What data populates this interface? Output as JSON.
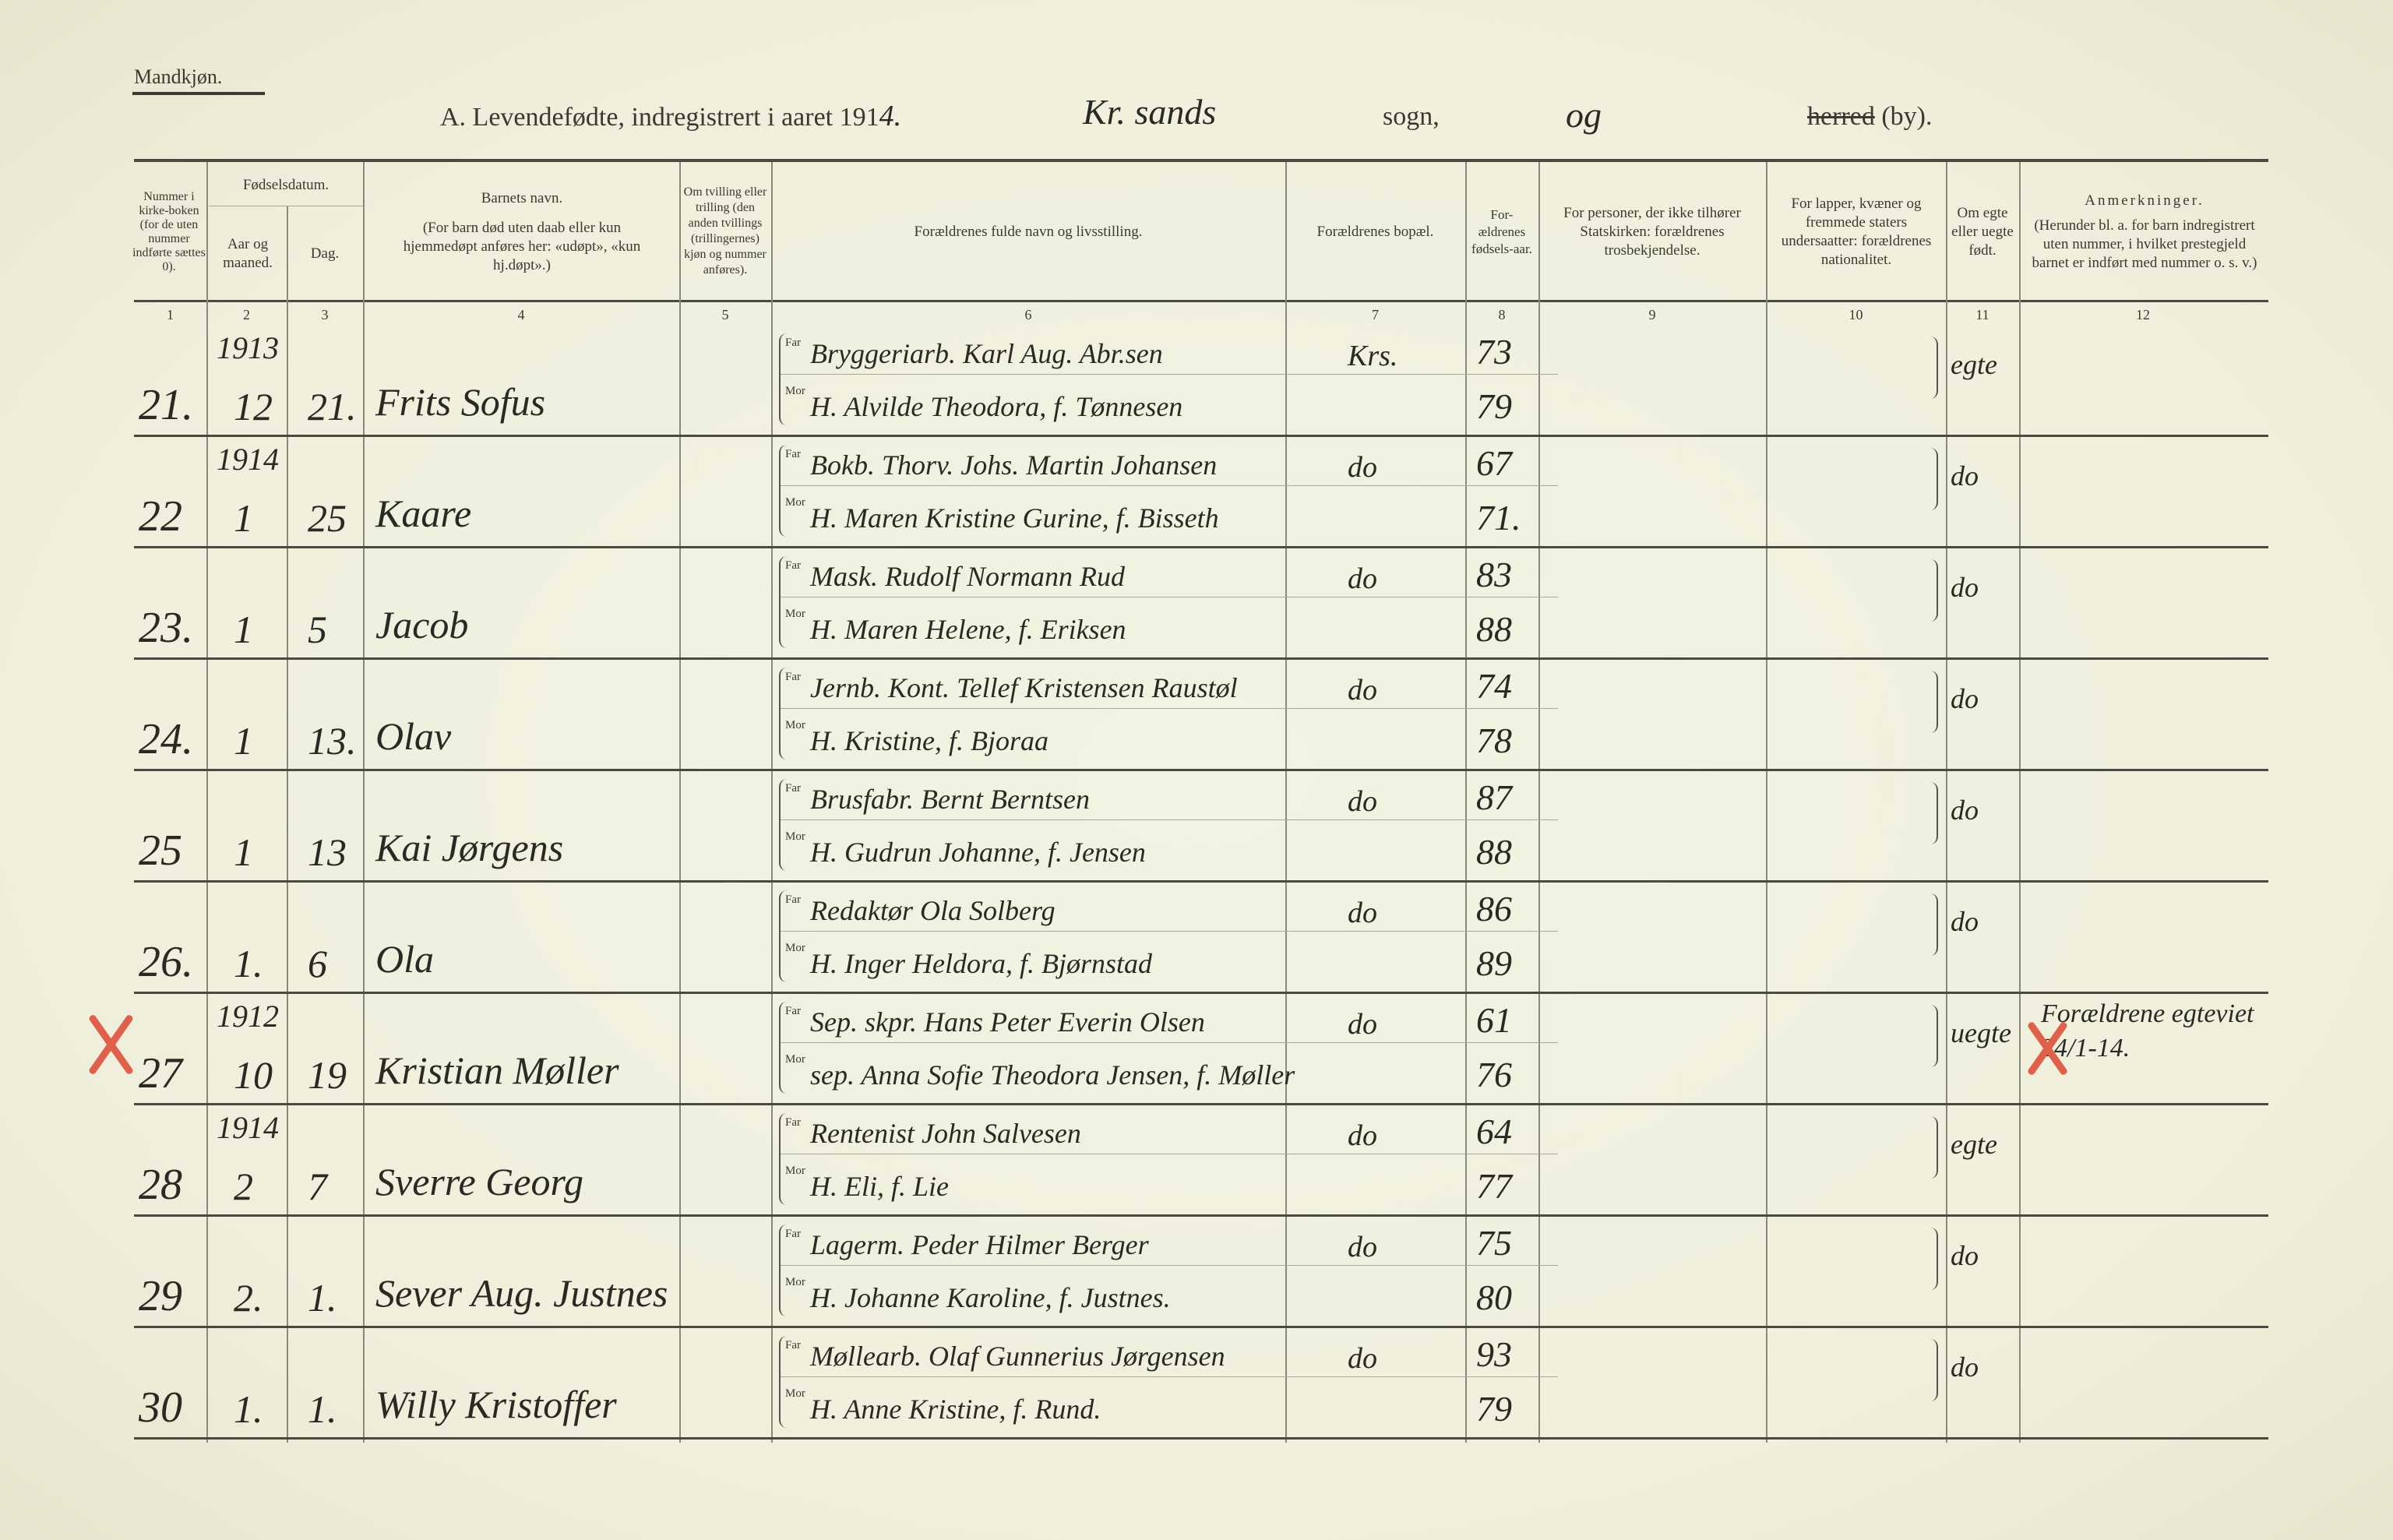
{
  "header": {
    "gender": "Mandkjøn.",
    "title_prefix": "A.  Levendefødte, indregistrert i aaret 191",
    "year_digit": "4.",
    "parish": "Kr. sands",
    "sogn": "sogn,",
    "og": "og",
    "herred": "herred",
    "by": "(by)."
  },
  "columns": [
    {
      "num": "1",
      "label": "Nummer i kirke-boken (for de uten nummer indførte sættes 0)."
    },
    {
      "num": "2",
      "label": "Aar og maaned."
    },
    {
      "num": "3",
      "label": "Dag."
    },
    {
      "num": "4",
      "label": "Barnets navn.",
      "sub": "(For barn død uten daab eller kun hjemmedøpt anføres her: «udøpt», «kun hj.døpt».)"
    },
    {
      "num": "5",
      "label": "Om tvilling eller trilling (den anden tvillings (trillingernes) kjøn og nummer anføres)."
    },
    {
      "num": "6",
      "label": "Forældrenes fulde navn og livsstilling."
    },
    {
      "num": "7",
      "label": "Forældrenes bopæl."
    },
    {
      "num": "8",
      "label": "For-ældrenes fødsels-aar."
    },
    {
      "num": "9",
      "label": "For personer, der ikke tilhører Statskirken: forældrenes trosbekjendelse."
    },
    {
      "num": "10",
      "label": "For lapper, kvæner og fremmede staters undersaatter: forældrenes nationalitet."
    },
    {
      "num": "11",
      "label": "Om egte eller uegte født."
    },
    {
      "num": "12",
      "label": "Anmerkninger.",
      "sub": "(Herunder bl. a. for barn indregistrert uten nummer, i hvilket prestegjeld barnet er indført med nummer o. s. v.)"
    }
  ],
  "group_label": "Fødselsdatum.",
  "far_label": "Far",
  "mor_label": "Mor",
  "rows": [
    {
      "num": "21.",
      "year": "1913",
      "month": "12",
      "day": "21.",
      "name": "Frits Sofus",
      "far": "Bryggeriarb. Karl Aug. Abr.sen",
      "mor": "H. Alvilde Theodora, f. Tønnesen",
      "bopael": "Krs.",
      "far_year": "73",
      "mor_year": "79",
      "egte": "egte",
      "remark": "",
      "marked": false
    },
    {
      "num": "22",
      "year": "1914",
      "month": "1",
      "day": "25",
      "name": "Kaare",
      "far": "Bokb. Thorv. Johs. Martin Johansen",
      "mor": "H. Maren Kristine Gurine, f. Bisseth",
      "bopael": "do",
      "far_year": "67",
      "mor_year": "71.",
      "egte": "do",
      "remark": "",
      "marked": false
    },
    {
      "num": "23.",
      "year": "",
      "month": "1",
      "day": "5",
      "name": "Jacob",
      "far": "Mask. Rudolf Normann Rud",
      "mor": "H. Maren Helene, f. Eriksen",
      "bopael": "do",
      "far_year": "83",
      "mor_year": "88",
      "egte": "do",
      "remark": "",
      "marked": false
    },
    {
      "num": "24.",
      "year": "",
      "month": "1",
      "day": "13.",
      "name": "Olav",
      "far": "Jernb. Kont. Tellef Kristensen Raustøl",
      "mor": "H. Kristine, f. Bjoraa",
      "bopael": "do",
      "far_year": "74",
      "mor_year": "78",
      "egte": "do",
      "remark": "",
      "marked": false
    },
    {
      "num": "25",
      "year": "",
      "month": "1",
      "day": "13",
      "name": "Kai Jørgens",
      "far": "Brusfabr. Bernt Berntsen",
      "mor": "H. Gudrun Johanne, f. Jensen",
      "bopael": "do",
      "far_year": "87",
      "mor_year": "88",
      "egte": "do",
      "remark": "",
      "marked": false
    },
    {
      "num": "26.",
      "year": "",
      "month": "1.",
      "day": "6",
      "name": "Ola",
      "far": "Redaktør Ola Solberg",
      "mor": "H. Inger Heldora, f. Bjørnstad",
      "bopael": "do",
      "far_year": "86",
      "mor_year": "89",
      "egte": "do",
      "remark": "",
      "marked": false
    },
    {
      "num": "27",
      "year": "1912",
      "month": "10",
      "day": "19",
      "name": "Kristian Møller",
      "far": "Sep. skpr. Hans Peter Everin Olsen",
      "mor": "sep. Anna Sofie Theodora Jensen, f. Møller",
      "bopael": "do",
      "far_year": "61",
      "mor_year": "76",
      "egte": "uegte",
      "remark": "Forældrene egteviet 24/1-14.",
      "marked": true
    },
    {
      "num": "28",
      "year": "1914",
      "month": "2",
      "day": "7",
      "name": "Sverre Georg",
      "far": "Rentenist John Salvesen",
      "mor": "H. Eli, f. Lie",
      "bopael": "do",
      "far_year": "64",
      "mor_year": "77",
      "egte": "egte",
      "remark": "",
      "marked": false
    },
    {
      "num": "29",
      "year": "",
      "month": "2.",
      "day": "1.",
      "name": "Sever Aug. Justnes",
      "far": "Lagerm. Peder Hilmer Berger",
      "mor": "H. Johanne Karoline, f. Justnes.",
      "bopael": "do",
      "far_year": "75",
      "mor_year": "80",
      "egte": "do",
      "remark": "",
      "marked": false
    },
    {
      "num": "30",
      "year": "",
      "month": "1.",
      "day": "1.",
      "name": "Willy Kristoffer",
      "far": "Møllearb. Olaf Gunnerius Jørgensen",
      "mor": "H. Anne Kristine, f. Rund.",
      "bopael": "do",
      "far_year": "93",
      "mor_year": "79",
      "egte": "do",
      "remark": "",
      "marked": false
    }
  ],
  "colors": {
    "paper": "#efefdc",
    "ink": "#2a2a25",
    "red_mark": "#e0604a"
  }
}
